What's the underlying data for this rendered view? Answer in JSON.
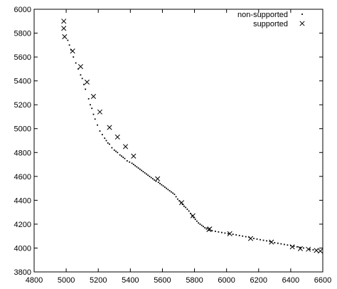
{
  "chart_data": {
    "type": "scatter",
    "title": "",
    "xlabel": "",
    "ylabel": "",
    "xlim": [
      4800,
      6600
    ],
    "ylim": [
      3800,
      6000
    ],
    "x_ticks": [
      4800,
      5000,
      5200,
      5400,
      5600,
      5800,
      6000,
      6200,
      6400,
      6600
    ],
    "y_ticks": [
      3800,
      4000,
      4200,
      4400,
      4600,
      4800,
      5000,
      5200,
      5400,
      5600,
      5800,
      6000
    ],
    "grid": false,
    "legend": {
      "placement": "top-right"
    },
    "series": [
      {
        "name": "non-supported",
        "marker": "dot",
        "x": [
          5010,
          5020,
          5030,
          5045,
          5060,
          5075,
          5090,
          5100,
          5110,
          5120,
          5140,
          5150,
          5160,
          5170,
          5180,
          5195,
          5210,
          5225,
          5240,
          5250,
          5260,
          5270,
          5285,
          5300,
          5310,
          5320,
          5335,
          5345,
          5355,
          5365,
          5380,
          5395,
          5410,
          5420,
          5430,
          5440,
          5450,
          5460,
          5470,
          5480,
          5490,
          5500,
          5510,
          5520,
          5530,
          5540,
          5550,
          5560,
          5575,
          5585,
          5595,
          5605,
          5615,
          5625,
          5635,
          5645,
          5655,
          5665,
          5675,
          5685,
          5695,
          5705,
          5715,
          5725,
          5735,
          5745,
          5755,
          5765,
          5775,
          5785,
          5795,
          5805,
          5815,
          5825,
          5835,
          5845,
          5855,
          5865,
          5875,
          5890,
          5910,
          5930,
          5950,
          5970,
          5990,
          6010,
          6040,
          6060,
          6080,
          6100,
          6120,
          6140,
          6170,
          6190,
          6210,
          6230,
          6250,
          6270,
          6300,
          6320,
          6340,
          6360,
          6380,
          6400,
          6420,
          6440,
          6460,
          6480,
          6520,
          6540,
          6560
        ],
        "y": [
          5740,
          5700,
          5660,
          5600,
          5550,
          5500,
          5450,
          5420,
          5370,
          5330,
          5250,
          5200,
          5170,
          5120,
          5080,
          5030,
          4980,
          4950,
          4920,
          4900,
          4880,
          4870,
          4840,
          4820,
          4810,
          4800,
          4780,
          4770,
          4760,
          4750,
          4730,
          4720,
          4710,
          4700,
          4690,
          4680,
          4670,
          4660,
          4650,
          4640,
          4630,
          4620,
          4610,
          4600,
          4590,
          4580,
          4570,
          4560,
          4550,
          4540,
          4530,
          4520,
          4510,
          4500,
          4490,
          4480,
          4470,
          4460,
          4450,
          4430,
          4410,
          4395,
          4380,
          4365,
          4350,
          4340,
          4325,
          4310,
          4290,
          4270,
          4255,
          4240,
          4225,
          4210,
          4200,
          4190,
          4180,
          4170,
          4160,
          4150,
          4145,
          4140,
          4135,
          4130,
          4125,
          4120,
          4115,
          4110,
          4105,
          4100,
          4095,
          4090,
          4080,
          4075,
          4070,
          4065,
          4060,
          4055,
          4045,
          4040,
          4035,
          4030,
          4025,
          4020,
          4015,
          4010,
          4005,
          4000,
          3990,
          3985,
          3980
        ]
      },
      {
        "name": "supported",
        "marker": "cross",
        "x": [
          4985,
          4985,
          4990,
          5040,
          5090,
          5130,
          5170,
          5210,
          5270,
          5320,
          5370,
          5420,
          5570,
          5720,
          5790,
          5890,
          5895,
          6020,
          6150,
          6280,
          6410,
          6460,
          6510,
          6560,
          6585
        ],
        "y": [
          5900,
          5840,
          5770,
          5650,
          5520,
          5390,
          5270,
          5140,
          5010,
          4930,
          4850,
          4770,
          4580,
          4380,
          4270,
          4155,
          4160,
          4120,
          4080,
          4050,
          4010,
          3995,
          3990,
          3980,
          3975
        ]
      }
    ]
  }
}
